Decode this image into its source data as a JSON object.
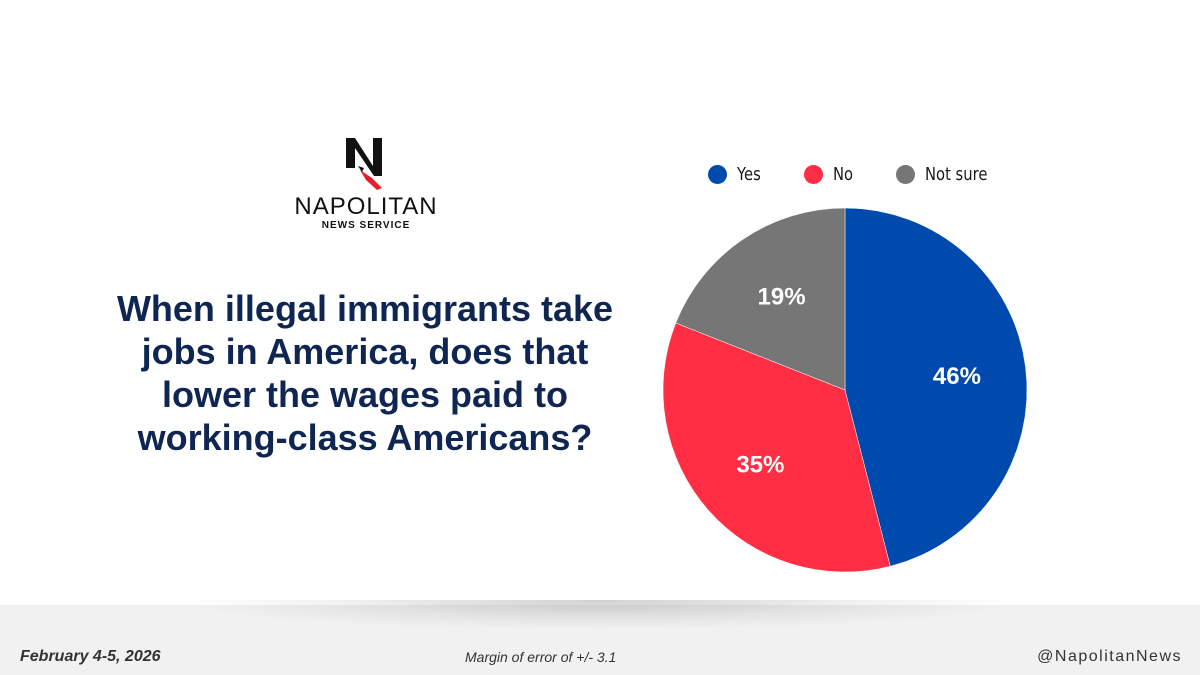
{
  "brand": {
    "name": "NAPOLITAN",
    "subtitle": "NEWS SERVICE",
    "logo_letter": "N"
  },
  "question": "When illegal immigrants take jobs in America, does that lower the wages paid to working-class Americans?",
  "chart_data": {
    "type": "pie",
    "categories": [
      "Yes",
      "No",
      "Not sure"
    ],
    "values": [
      46,
      35,
      19
    ],
    "value_labels": [
      "46%",
      "35%",
      "19%"
    ],
    "colors": [
      "#004aad",
      "#ff2e44",
      "#767676"
    ],
    "legend_position": "top"
  },
  "footer": {
    "date": "February 4-5, 2026",
    "margin_of_error": "Margin of error of +/- 3.1",
    "handle": "@NapolitanNews"
  }
}
